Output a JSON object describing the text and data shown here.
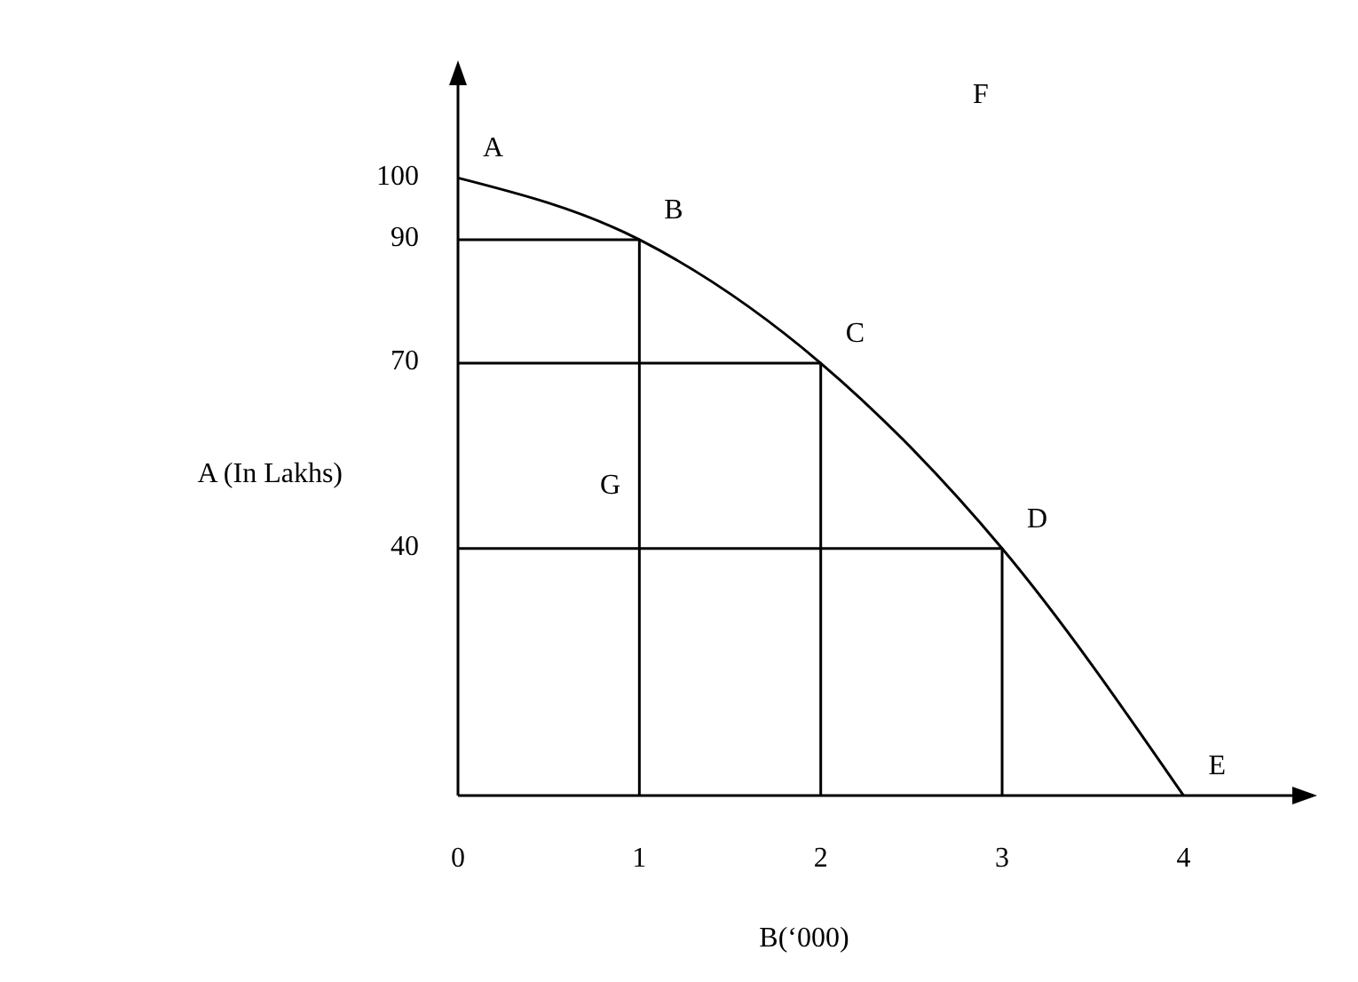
{
  "chart_data": {
    "type": "line",
    "xlabel": "B(‘000)",
    "ylabel": "A (In Lakhs)",
    "xlim": [
      0,
      4.6
    ],
    "ylim": [
      0,
      115
    ],
    "xticks": [
      0,
      1,
      2,
      3,
      4
    ],
    "yticks": [
      40,
      70,
      90,
      100
    ],
    "marker": "none",
    "line_style": "solid",
    "series": [
      {
        "color": "#000000",
        "x": [
          0,
          1,
          2,
          3,
          4
        ],
        "values": [
          100,
          90,
          70,
          40,
          0
        ]
      },
      {
        "color": "#000000",
        "x": [
          0,
          1,
          1
        ],
        "values": [
          90,
          90,
          0
        ]
      },
      {
        "color": "#000000",
        "x": [
          0,
          2,
          2
        ],
        "values": [
          70,
          70,
          0
        ]
      },
      {
        "color": "#000000",
        "x": [
          0,
          3,
          3
        ],
        "values": [
          40,
          40,
          0
        ]
      }
    ],
    "annotations": [
      {
        "text": "A",
        "x": 0,
        "y": 100
      },
      {
        "text": "B",
        "x": 1,
        "y": 90
      },
      {
        "text": "C",
        "x": 2,
        "y": 70
      },
      {
        "text": "D",
        "x": 3,
        "y": 40
      },
      {
        "text": "E",
        "x": 4,
        "y": 0
      },
      "F",
      "G"
    ]
  }
}
